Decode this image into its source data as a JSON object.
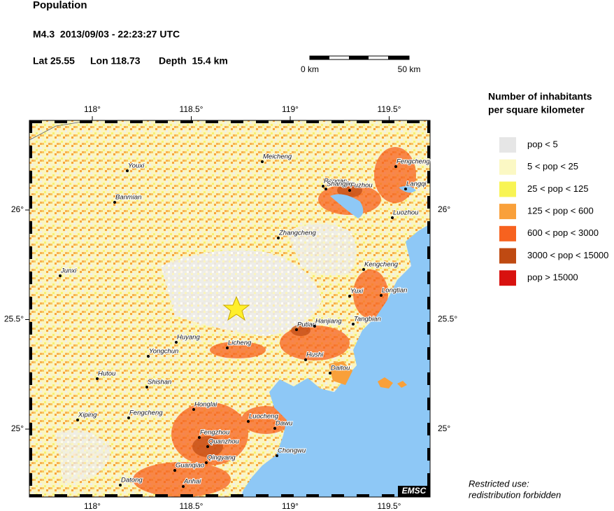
{
  "header": {
    "title": "Population",
    "event": "M4.3  2013/09/03 - 22:23:27 UTC",
    "lat": "Lat 25.55",
    "lon": "Lon 118.73",
    "depth": "Depth  15.4 km"
  },
  "scale_bar": {
    "start": "0 km",
    "end": "50 km"
  },
  "map": {
    "lon_ticks": [
      {
        "value": 118,
        "label": "118°"
      },
      {
        "value": 118.5,
        "label": "118.5°"
      },
      {
        "value": 119,
        "label": "119°"
      },
      {
        "value": 119.5,
        "label": "119.5°"
      }
    ],
    "lat_ticks": [
      {
        "value": 26,
        "label": "26°"
      },
      {
        "value": 25.5,
        "label": "25.5°"
      },
      {
        "value": 25,
        "label": "25°"
      }
    ],
    "cities": [
      "Meicheng",
      "Youxi",
      "Banmian",
      "Rongan",
      "Shangjie",
      "Fuzhou",
      "Fengcheng",
      "Langqi",
      "Luozhou",
      "Zhangcheng",
      "Junxi",
      "Kengcheng",
      "Yuxi",
      "Longtian",
      "Putian",
      "Hanjiang",
      "Tangbian",
      "Huyang",
      "Licheng",
      "Yongchun",
      "Hushi",
      "Daitou",
      "Hutou",
      "Shishan",
      "Honglai",
      "Xiping",
      "Fengcheng",
      "Luocheng",
      "Dawu",
      "Fengzhou",
      "Quanzhou",
      "Chongwu",
      "Qingyang",
      "Guanqiao",
      "Anhai",
      "Datong"
    ],
    "credit": "EMSC"
  },
  "legend": {
    "title": [
      "Number of inhabitants",
      "per square kilometer"
    ],
    "items": [
      {
        "label": "pop < 5",
        "color": "#e6e6e6"
      },
      {
        "label": "5 < pop < 25",
        "color": "#fbf8c4"
      },
      {
        "label": "25 < pop < 125",
        "color": "#f8f454"
      },
      {
        "label": "125 < pop < 600",
        "color": "#f9a03a"
      },
      {
        "label": "600 < pop < 3000",
        "color": "#f7621f"
      },
      {
        "label": "3000 < pop < 15000",
        "color": "#bf4a12"
      },
      {
        "label": "pop > 15000",
        "color": "#d8120f"
      }
    ]
  },
  "notice": [
    "Restricted use:",
    "redistribution forbidden"
  ]
}
